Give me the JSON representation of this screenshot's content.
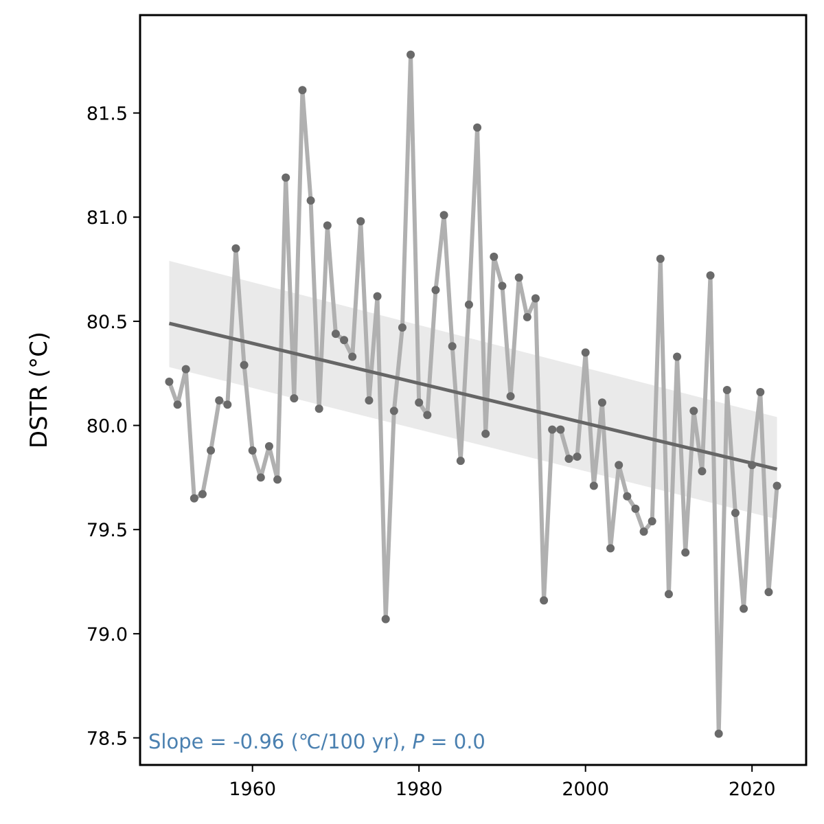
{
  "chart_data": {
    "type": "line",
    "ylabel": "DSTR (°C)",
    "xlabel": "",
    "title": "",
    "xlim": [
      1946.5,
      2026.5
    ],
    "ylim": [
      78.37,
      81.97
    ],
    "x_ticks": [
      "1960",
      "1980",
      "2000",
      "2020"
    ],
    "x_tick_values": [
      1960,
      1980,
      2000,
      2020
    ],
    "y_ticks": [
      "78.5",
      "79.0",
      "79.5",
      "80.0",
      "80.5",
      "81.0",
      "81.5"
    ],
    "y_tick_values": [
      78.5,
      79.0,
      79.5,
      80.0,
      80.5,
      81.0,
      81.5
    ],
    "grid": false,
    "series": [
      {
        "x": [
          1950,
          1951,
          1952,
          1953,
          1954,
          1955,
          1956,
          1957,
          1958,
          1959,
          1960,
          1961,
          1962,
          1963,
          1964,
          1965,
          1966,
          1967,
          1968,
          1969,
          1970,
          1971,
          1972,
          1973,
          1974,
          1975,
          1976,
          1977,
          1978,
          1979,
          1980,
          1981,
          1982,
          1983,
          1984,
          1985,
          1986,
          1987,
          1988,
          1989,
          1990,
          1991,
          1992,
          1993,
          1994,
          1995,
          1996,
          1997,
          1998,
          1999,
          2000,
          2001,
          2002,
          2003,
          2004,
          2005,
          2006,
          2007,
          2008,
          2009,
          2010,
          2011,
          2012,
          2013,
          2014,
          2015,
          2016,
          2017,
          2018,
          2019,
          2020,
          2021,
          2022,
          2023
        ],
        "values": [
          80.21,
          80.1,
          80.27,
          79.65,
          79.67,
          79.88,
          80.12,
          80.1,
          80.85,
          80.29,
          79.88,
          79.75,
          79.9,
          79.74,
          81.19,
          80.13,
          81.61,
          81.08,
          80.08,
          80.96,
          80.44,
          80.41,
          80.33,
          80.98,
          80.12,
          80.62,
          79.07,
          80.07,
          80.47,
          81.78,
          80.11,
          80.05,
          80.65,
          81.01,
          80.38,
          79.83,
          80.58,
          81.43,
          79.96,
          80.81,
          80.67,
          80.14,
          80.71,
          80.52,
          80.61,
          79.16,
          79.98,
          79.98,
          79.84,
          79.85,
          80.35,
          79.71,
          80.11,
          79.41,
          79.81,
          79.66,
          79.6,
          79.49,
          79.54,
          80.8,
          79.19,
          80.33,
          79.39,
          80.07,
          79.78,
          80.72,
          78.52,
          80.17,
          79.58,
          79.12,
          79.81,
          80.16,
          79.2,
          79.71
        ],
        "line_color": "#b0b0b0",
        "marker_color": "#6a6a6a"
      }
    ],
    "trend": {
      "x": [
        1950,
        2023
      ],
      "values": [
        80.49,
        79.79
      ],
      "ci_lower": [
        80.28,
        79.55
      ],
      "ci_upper": [
        80.79,
        80.04
      ],
      "color": "#666666",
      "band_color": "#e6e6e6"
    },
    "annotation": {
      "prefix": "Slope = -0.96 (℃/100 yr), ",
      "p_symbol": "P",
      "suffix": " = 0.0",
      "color": "#4a80b0"
    }
  }
}
